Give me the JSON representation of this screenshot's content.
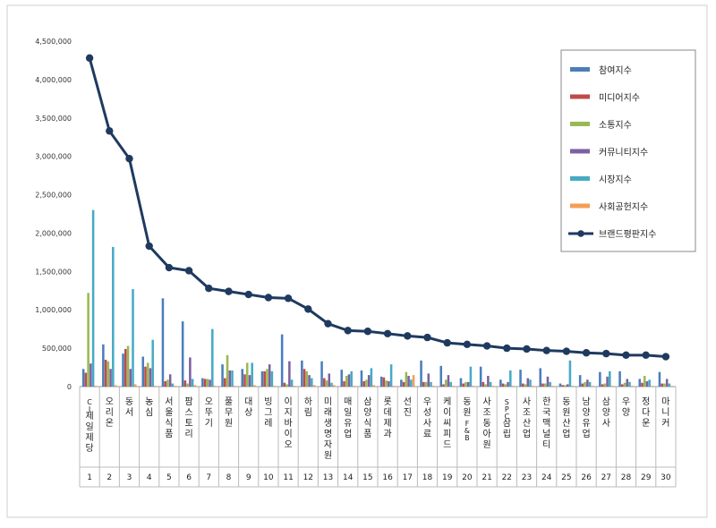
{
  "chart_data": {
    "type": "bar",
    "categories": [
      "CJ제일제당",
      "오리온",
      "동서",
      "농심",
      "서울식품",
      "팜스토리",
      "오뚜기",
      "풀무원",
      "대상",
      "빙그레",
      "이지바이오",
      "하림",
      "미래생명자원",
      "매일유업",
      "삼양식품",
      "롯데제과",
      "선진",
      "우성사료",
      "케이씨피드",
      "동원F&B",
      "사조동아원",
      "SPC삼립",
      "사조산업",
      "한국맥널티",
      "동원산업",
      "남양유업",
      "삼양사",
      "우양",
      "정다운",
      "마니커"
    ],
    "ranks": [
      "1",
      "2",
      "3",
      "4",
      "5",
      "6",
      "7",
      "8",
      "9",
      "10",
      "11",
      "12",
      "13",
      "14",
      "15",
      "16",
      "17",
      "18",
      "19",
      "20",
      "21",
      "22",
      "23",
      "24",
      "25",
      "26",
      "27",
      "28",
      "29",
      "30"
    ],
    "ylim": [
      0,
      4500000
    ],
    "yticks": [
      "0",
      "500,000",
      "1,000,000",
      "1,500,000",
      "2,000,000",
      "2,500,000",
      "3,000,000",
      "3,500,000",
      "4,000,000",
      "4,500,000"
    ],
    "grid": false,
    "legend_position": "top-right",
    "series": [
      {
        "name": "참여지수",
        "kind": "bar",
        "color": "#4a7ebb",
        "values": [
          230000,
          550000,
          430000,
          390000,
          1150000,
          850000,
          110000,
          290000,
          230000,
          200000,
          680000,
          340000,
          330000,
          220000,
          210000,
          130000,
          90000,
          340000,
          270000,
          110000,
          260000,
          90000,
          220000,
          240000,
          40000,
          150000,
          190000,
          200000,
          100000,
          190000
        ]
      },
      {
        "name": "미디어지수",
        "kind": "bar",
        "color": "#be4b48",
        "values": [
          180000,
          350000,
          490000,
          260000,
          70000,
          80000,
          100000,
          110000,
          160000,
          200000,
          50000,
          230000,
          110000,
          70000,
          70000,
          120000,
          60000,
          60000,
          30000,
          40000,
          60000,
          40000,
          40000,
          40000,
          20000,
          40000,
          30000,
          30000,
          50000,
          40000
        ]
      },
      {
        "name": "소통지수",
        "kind": "bar",
        "color": "#98b954",
        "values": [
          1220000,
          330000,
          530000,
          310000,
          90000,
          40000,
          100000,
          410000,
          310000,
          230000,
          30000,
          200000,
          80000,
          140000,
          90000,
          80000,
          190000,
          60000,
          90000,
          60000,
          30000,
          30000,
          30000,
          40000,
          20000,
          60000,
          40000,
          50000,
          140000,
          40000
        ]
      },
      {
        "name": "커뮤니티지수",
        "kind": "bar",
        "color": "#7d60a0",
        "values": [
          300000,
          230000,
          230000,
          240000,
          160000,
          380000,
          90000,
          210000,
          150000,
          290000,
          330000,
          150000,
          170000,
          160000,
          150000,
          70000,
          140000,
          170000,
          150000,
          60000,
          140000,
          60000,
          110000,
          130000,
          30000,
          90000,
          130000,
          100000,
          70000,
          100000
        ]
      },
      {
        "name": "시장지수",
        "kind": "bar",
        "color": "#46aac5",
        "values": [
          2300000,
          1820000,
          1270000,
          610000,
          40000,
          100000,
          750000,
          210000,
          310000,
          200000,
          90000,
          110000,
          50000,
          200000,
          240000,
          290000,
          90000,
          60000,
          60000,
          260000,
          60000,
          210000,
          90000,
          60000,
          340000,
          60000,
          200000,
          60000,
          90000,
          40000
        ]
      },
      {
        "name": "사회공헌지수",
        "kind": "bar",
        "color": "#f59d56",
        "values": [
          10000,
          20000,
          30000,
          10000,
          10000,
          20000,
          10000,
          10000,
          20000,
          10000,
          10000,
          20000,
          20000,
          10000,
          20000,
          10000,
          150000,
          10000,
          10000,
          10000,
          10000,
          10000,
          10000,
          10000,
          10000,
          10000,
          10000,
          10000,
          10000,
          10000
        ]
      },
      {
        "name": "브랜드평판지수",
        "kind": "line",
        "color": "#1f3a5f",
        "values": [
          4280000,
          3330000,
          2970000,
          1830000,
          1550000,
          1510000,
          1280000,
          1240000,
          1200000,
          1160000,
          1150000,
          1010000,
          820000,
          730000,
          720000,
          690000,
          660000,
          640000,
          570000,
          550000,
          530000,
          500000,
          490000,
          470000,
          460000,
          440000,
          430000,
          410000,
          410000,
          390000
        ]
      }
    ]
  }
}
